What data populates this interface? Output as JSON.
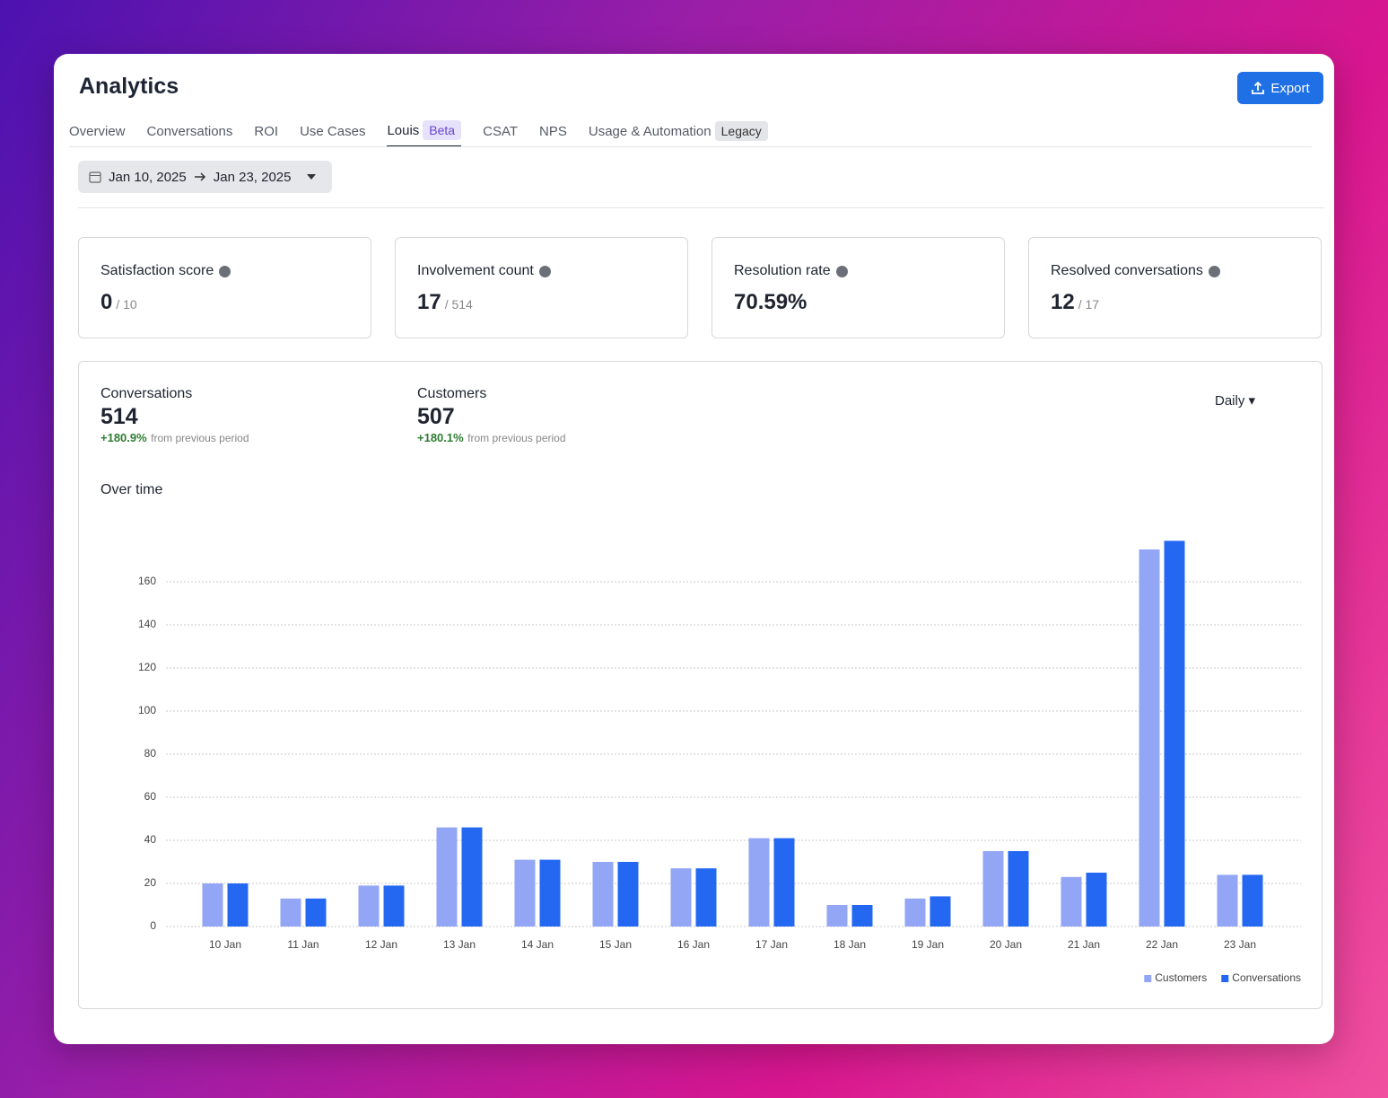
{
  "header": {
    "title": "Analytics",
    "export": "Export"
  },
  "tabs": [
    {
      "label": "Overview"
    },
    {
      "label": "Conversations"
    },
    {
      "label": "ROI"
    },
    {
      "label": "Use Cases"
    },
    {
      "label": "Louis",
      "badge": "Beta"
    },
    {
      "label": "CSAT"
    },
    {
      "label": "NPS"
    },
    {
      "label": "Usage & Automation",
      "badge": "Legacy"
    }
  ],
  "date_range": {
    "start": "Jan 10, 2025",
    "end": "Jan 23, 2025"
  },
  "kpis": [
    {
      "label": "Satisfaction score",
      "value": 0,
      "total": "/ 10"
    },
    {
      "label": "Involvement count",
      "value": 17,
      "total": "/ 514"
    },
    {
      "label": "Resolution rate",
      "value": "70.59%"
    },
    {
      "label": "Resolved conversations",
      "value": 12,
      "total": "/ 17"
    }
  ],
  "summary": [
    {
      "label": "Conversations",
      "value": 514,
      "change": "+180.9%",
      "note": "from previous period"
    },
    {
      "label": "Customers",
      "value": 507,
      "change": "+180.1%",
      "note": "from previous period"
    }
  ],
  "interval": "Daily",
  "chart_data": {
    "type": "bar",
    "title": "Over time",
    "categories": [
      "10 Jan",
      "11 Jan",
      "12 Jan",
      "13 Jan",
      "14 Jan",
      "15 Jan",
      "16 Jan",
      "17 Jan",
      "18 Jan",
      "19 Jan",
      "20 Jan",
      "21 Jan",
      "22 Jan",
      "23 Jan"
    ],
    "series": [
      {
        "name": "Customers",
        "color": "#93a6f5",
        "values": [
          20,
          13,
          19,
          46,
          31,
          30,
          27,
          41,
          10,
          13,
          35,
          23,
          175,
          24
        ]
      },
      {
        "name": "Conversations",
        "color": "#2468f2",
        "values": [
          20,
          13,
          19,
          46,
          31,
          30,
          27,
          41,
          10,
          14,
          35,
          25,
          179,
          24
        ]
      }
    ],
    "ylim": [
      0,
      180
    ],
    "yticks": [
      0,
      20,
      40,
      60,
      80,
      100,
      120,
      140,
      160
    ],
    "grid": true,
    "legend": "bottom-right"
  }
}
